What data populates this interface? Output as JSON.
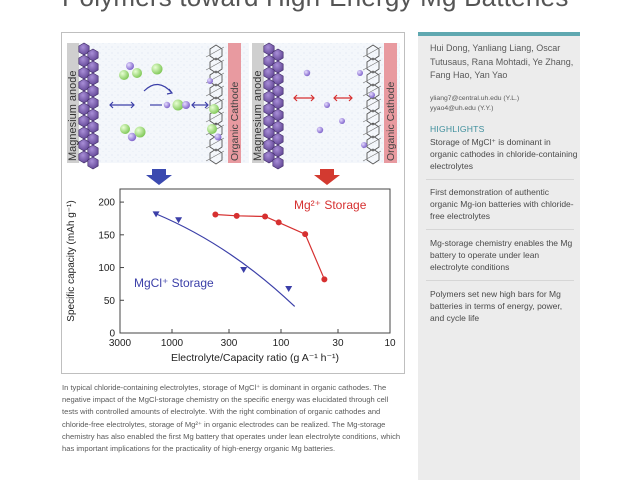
{
  "title": "Polymers toward High-Energy Mg Batteries",
  "figure": {
    "anode_label": "Magnesium anode",
    "cathode_label_left": "Organic Cathode",
    "cathode_label_right": "Organic Cathode",
    "chart": {
      "ylabel": "Specific capacity (mAh g⁻¹)",
      "xlabel": "Electrolyte/Capacity ratio (g A⁻¹ h⁻¹)",
      "xticks": [
        "3000",
        "1000",
        "300",
        "100",
        "30",
        "10"
      ],
      "yticks": [
        "0",
        "50",
        "100",
        "150",
        "200"
      ],
      "series_mgcl_label": "MgCl⁺ Storage",
      "series_mg_label": "Mg²⁺ Storage"
    }
  },
  "chart_data": {
    "type": "scatter",
    "xlabel": "Electrolyte/Capacity ratio (g A⁻¹ h⁻¹)",
    "ylabel": "Specific capacity (mAh g⁻¹)",
    "xscale": "log",
    "xaxis_reversed": true,
    "xlim": [
      3000,
      10
    ],
    "ylim": [
      0,
      220
    ],
    "series": [
      {
        "name": "MgCl⁺ Storage",
        "color": "#3b3fa8",
        "marker": "triangle-down",
        "x": [
          1400,
          870,
          220,
          85
        ],
        "y": [
          182,
          173,
          97,
          68
        ]
      },
      {
        "name": "Mg²⁺ Storage",
        "color": "#d63030",
        "marker": "circle",
        "x": [
          400,
          255,
          140,
          105,
          60,
          40
        ],
        "y": [
          181,
          179,
          178,
          169,
          151,
          82
        ]
      }
    ],
    "legend": "none",
    "grid": false
  },
  "abstract": "In typical chloride-containing electrolytes, storage of MgCl⁺ is dominant in organic cathodes. The negative impact of the MgCl-storage chemistry on the specific energy was elucidated through cell tests with controlled amounts of electrolyte. With the right combination of organic cathodes and chloride-free electrolytes, storage of Mg²⁺ in organic electrodes can be realized. The Mg-storage chemistry has also enabled the first Mg battery that operates under lean electrolyte conditions, which has important implications for the practicality of high-energy organic Mg batteries.",
  "authors": "Hui Dong, Yanliang Liang, Oscar Tutusaus, Rana Mohtadi, Ye Zhang, Fang Hao, Yan Yao",
  "emails": [
    "yliang7@central.uh.edu (Y.L.)",
    "yyao4@uh.edu (Y.Y.)"
  ],
  "highlights_heading": "HIGHLIGHTS",
  "highlights": [
    "Storage of MgCl⁺ is dominant in organic cathodes in chloride-containing electrolytes",
    "First demonstration of authentic organic Mg-ion batteries with chloride-free electrolytes",
    "Mg-storage chemistry enables the Mg battery to operate under lean electrolyte conditions",
    "Polymers set new high bars for Mg batteries in terms of energy, power, and cycle life"
  ],
  "colors": {
    "accent": "#3f8f9d",
    "mgcl": "#3b3fa8",
    "mg": "#d63030",
    "cathode_bar": "#e89aa0"
  }
}
